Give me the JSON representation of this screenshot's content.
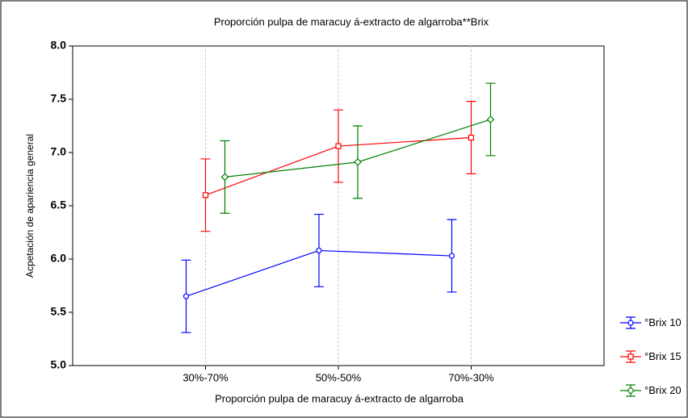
{
  "chart_data": {
    "type": "line",
    "title": "Proporción pulpa de maracuy á-extracto de algarroba**Brix",
    "x_label": "Proporción pulpa de maracuy á-extracto de algarroba",
    "y_label": "Acpetación de apariencia general",
    "categories": [
      "30%-70%",
      "50%-50%",
      "70%-30%"
    ],
    "series": [
      {
        "name": "°Brix 10",
        "color": "#0000ff",
        "marker": "circle",
        "values": [
          5.65,
          6.08,
          6.03
        ],
        "errors": [
          0.34,
          0.34,
          0.34
        ]
      },
      {
        "name": "°Brix 15",
        "color": "#ff0000",
        "marker": "square",
        "values": [
          6.6,
          7.06,
          7.14
        ],
        "errors": [
          0.34,
          0.34,
          0.34
        ]
      },
      {
        "name": "°Brix 20",
        "color": "#008000",
        "marker": "diamond",
        "values": [
          6.77,
          6.91,
          7.31
        ],
        "errors": [
          0.34,
          0.34,
          0.34
        ]
      }
    ],
    "ylim": [
      5,
      8
    ],
    "yticks": [
      {
        "value": 5,
        "label": "5.0"
      },
      {
        "value": 5.5,
        "label": "5.5"
      },
      {
        "value": 6,
        "label": "6.0"
      },
      {
        "value": 6.5,
        "label": "6.5"
      },
      {
        "value": 7,
        "label": "7.0"
      },
      {
        "value": 7.5,
        "label": "7.5"
      },
      {
        "value": 8,
        "label": "8.0"
      }
    ],
    "grid": true,
    "legend": "bottom-right"
  }
}
